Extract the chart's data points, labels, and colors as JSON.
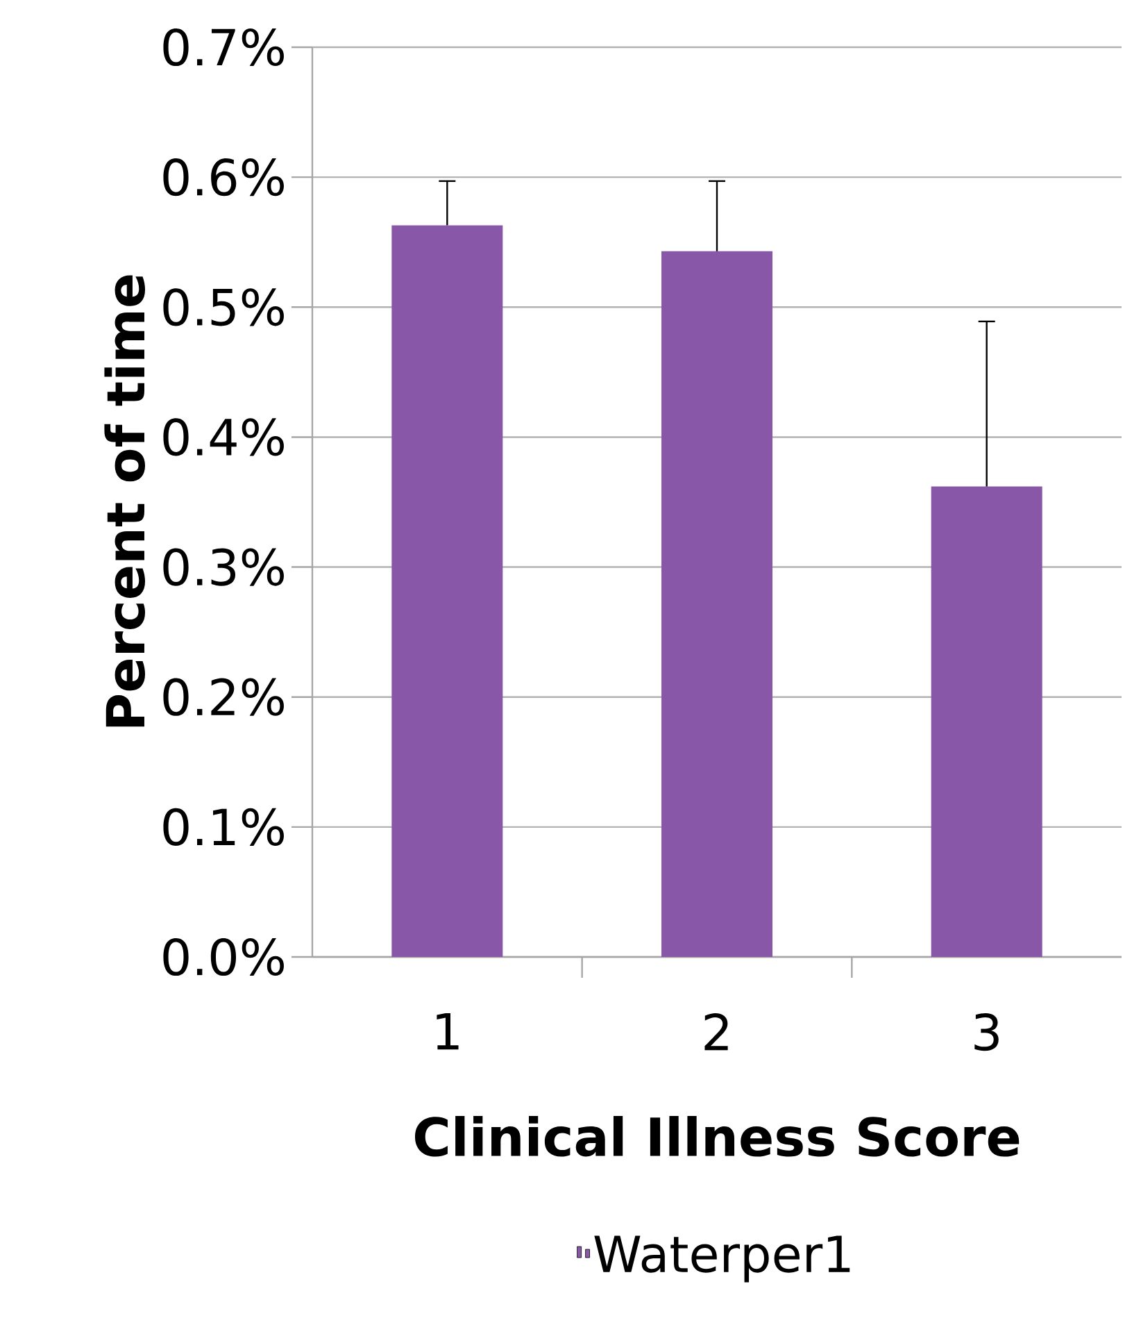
{
  "chart_data": {
    "type": "bar",
    "xlabel": "Clinical Illness Score",
    "ylabel": "Percent of time",
    "categories": [
      "1",
      "2",
      "3"
    ],
    "series": [
      {
        "name": "Waterper1",
        "color": "#8957a8",
        "values": [
          0.563,
          0.543,
          0.362
        ],
        "errors": [
          [
            0.563,
            0.597
          ],
          [
            0.543,
            0.597
          ],
          [
            0.362,
            0.489
          ]
        ]
      }
    ],
    "ylim": [
      0,
      0.7
    ],
    "yticks": [
      {
        "value": 0,
        "label": "0.0%"
      },
      {
        "value": 0.1,
        "label": "0.1%"
      },
      {
        "value": 0.2,
        "label": "0.2%"
      },
      {
        "value": 0.3,
        "label": "0.3%"
      },
      {
        "value": 0.4,
        "label": "0.4%"
      },
      {
        "value": 0.5,
        "label": "0.5%"
      },
      {
        "value": 0.6,
        "label": "0.6%"
      },
      {
        "value": 0.7,
        "label": "0.7%"
      }
    ],
    "grid": "y",
    "legend": "bottom"
  }
}
